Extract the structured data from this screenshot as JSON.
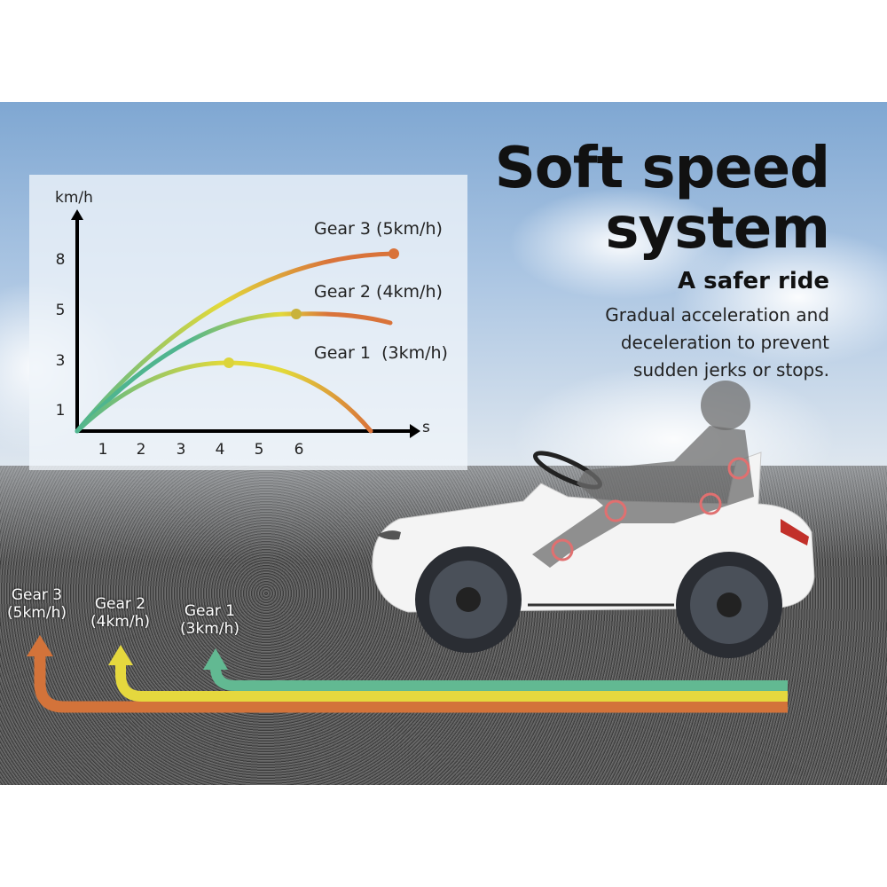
{
  "headline": {
    "line1": "Soft speed",
    "line2": "system"
  },
  "subheadline": "A safer ride",
  "description": [
    "Gradual acceleration and",
    "deceleration to prevent",
    "sudden jerks or stops."
  ],
  "chart_data": {
    "type": "line",
    "ylabel": "km/h",
    "xlabel": "s",
    "x_tick_labels": [
      "1",
      "2",
      "3",
      "4",
      "5",
      "6"
    ],
    "y_tick_labels": [
      "1",
      "3",
      "5",
      "8"
    ],
    "series": [
      {
        "name": "Gear 3 (5km/h)",
        "color": "#d9733a"
      },
      {
        "name": "Gear 2 (4km/h)",
        "color": "#d9733a"
      },
      {
        "name": "Gear 1  (3km/h)",
        "color": "#d9733a"
      }
    ],
    "gradient_colors": [
      "#4fb58f",
      "#e2d93a",
      "#d9733a"
    ]
  },
  "gear_arrows": [
    {
      "line1": "Gear 3",
      "line2": "(5km/h)",
      "color": "#d3733a"
    },
    {
      "line1": "Gear 2",
      "line2": "(4km/h)",
      "color": "#e5d83e"
    },
    {
      "line1": "Gear 1",
      "line2": "(3km/h)",
      "color": "#62b992"
    }
  ]
}
